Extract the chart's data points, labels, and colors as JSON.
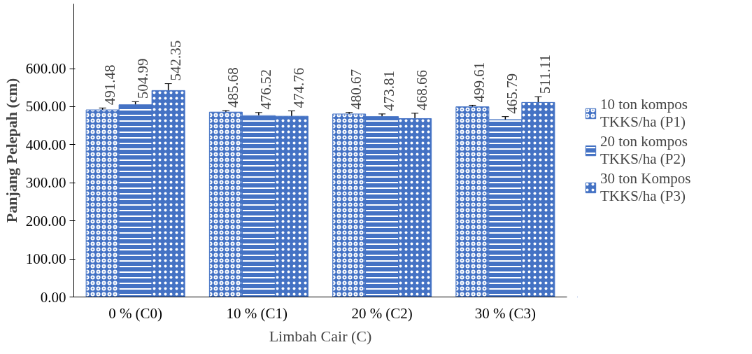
{
  "chart_data": {
    "type": "bar",
    "xlabel": "Limbah Cair (C)",
    "ylabel": "Panjang Pelepah (cm)",
    "categories": [
      "0 % (C0)",
      "10 %  (C1)",
      "20 % (C2)",
      "30 % (C3)"
    ],
    "series": [
      {
        "name": "10 ton kompos TKKS/ha (P1)",
        "color": "#4472c4",
        "values": [
          491.48,
          485.68,
          480.67,
          499.61
        ],
        "errors": [
          5,
          4,
          4,
          4
        ]
      },
      {
        "name": "20 ton kompos TKKS/ha (P2)",
        "color": "#4472c4",
        "values": [
          504.99,
          476.52,
          473.81,
          465.79
        ],
        "errors": [
          8,
          8,
          7,
          8
        ]
      },
      {
        "name": "30 ton Kompos TKKS/ha (P3)",
        "color": "#4472c4",
        "values": [
          542.35,
          474.76,
          468.66,
          511.11
        ],
        "errors": [
          18,
          14,
          14,
          15
        ]
      }
    ],
    "ylim": [
      0,
      770
    ],
    "yticks": [
      {
        "value": 0,
        "label": "0.00"
      },
      {
        "value": 100,
        "label": "100.00"
      },
      {
        "value": 200,
        "label": "200.00"
      },
      {
        "value": 300,
        "label": "300.00"
      },
      {
        "value": 400,
        "label": "400.00"
      },
      {
        "value": 500,
        "label": "500.00"
      },
      {
        "value": 600,
        "label": "600.00"
      }
    ],
    "data_labels": true,
    "legend": "right",
    "grid": false
  }
}
